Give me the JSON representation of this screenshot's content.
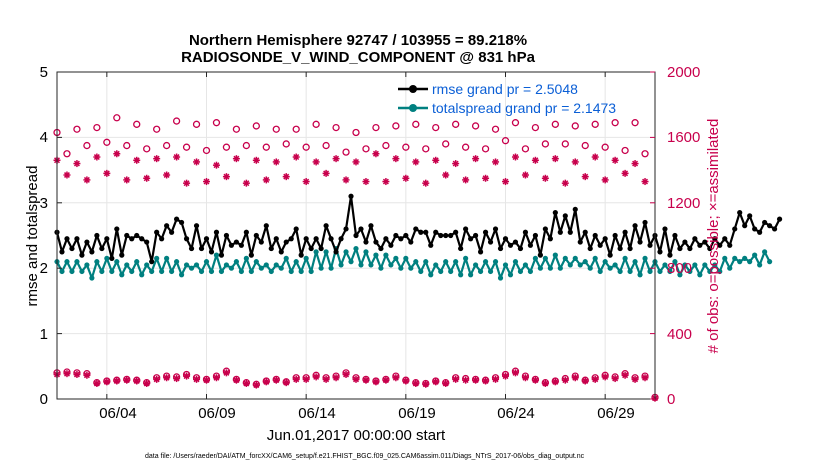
{
  "chart_data": {
    "type": "line",
    "title_line1": "Northern Hemisphere 92747 / 103955 = 89.218%",
    "title_line2": "RADIOSONDE_V_WIND_COMPONENT @ 831 hPa",
    "ylabel_left": "rmse and totalspread",
    "ylabel_right": "# of obs: o=possible; ×=assimilated",
    "xlabel": "Jun.01,2017 00:00:00 start",
    "footer": "data file: /Users/raeder/DAI/ATM_forcXX/CAM6_setup/f.e21.FHIST_BGC.f09_025.CAM6assim.011/Diags_NTrS_2017-06/obs_diag_output.nc",
    "ylim_left": [
      0,
      5
    ],
    "ylim_right": [
      0,
      2000
    ],
    "xlim": [
      1.5,
      31.5
    ],
    "yticks_left": [
      "0",
      "1",
      "2",
      "3",
      "4",
      "5"
    ],
    "yticks_right": [
      "0",
      "400",
      "800",
      "1200",
      "1600",
      "2000"
    ],
    "xticks": [
      {
        "day": 4,
        "label": "06/04"
      },
      {
        "day": 9,
        "label": "06/09"
      },
      {
        "day": 14,
        "label": "06/14"
      },
      {
        "day": 19,
        "label": "06/19"
      },
      {
        "day": 24,
        "label": "06/24"
      },
      {
        "day": 29,
        "label": "06/29"
      }
    ],
    "x_start": 1.5,
    "x_step": 0.25,
    "series": [
      {
        "name": "rmse",
        "legend": "rmse grand pr = 2.5048",
        "axis": "left",
        "color": "#000000",
        "marker": "dot",
        "values": [
          2.55,
          2.25,
          2.45,
          2.3,
          2.45,
          2.2,
          2.4,
          2.25,
          2.5,
          2.3,
          2.45,
          2.15,
          2.6,
          2.2,
          2.5,
          2.45,
          2.5,
          2.45,
          2.4,
          2.1,
          2.55,
          2.45,
          2.65,
          2.55,
          2.75,
          2.7,
          2.45,
          2.3,
          2.65,
          2.3,
          2.45,
          2.25,
          2.55,
          2.2,
          2.5,
          2.35,
          2.4,
          2.35,
          2.55,
          2.2,
          2.5,
          2.4,
          2.65,
          2.3,
          2.45,
          2.25,
          2.4,
          2.45,
          2.6,
          2.2,
          2.45,
          2.3,
          2.45,
          2.3,
          2.65,
          2.45,
          2.25,
          2.45,
          2.6,
          3.1,
          2.5,
          2.6,
          2.4,
          2.65,
          2.4,
          2.3,
          2.45,
          2.35,
          2.5,
          2.45,
          2.5,
          2.4,
          2.6,
          2.55,
          2.55,
          2.35,
          2.55,
          2.5,
          2.5,
          2.5,
          2.55,
          2.3,
          2.6,
          2.45,
          2.5,
          2.25,
          2.55,
          2.4,
          2.6,
          2.3,
          2.45,
          2.35,
          2.4,
          2.3,
          2.55,
          2.35,
          2.5,
          2.2,
          2.6,
          2.45,
          2.85,
          2.55,
          2.8,
          2.55,
          2.9,
          2.4,
          2.55,
          2.3,
          2.5,
          2.35,
          2.45,
          2.2,
          2.5,
          2.3,
          2.55,
          2.3,
          2.65,
          2.4,
          2.7,
          2.35,
          2.5,
          2.25,
          2.6,
          2.2,
          2.5,
          2.3,
          2.4,
          2.3,
          2.45,
          2.35,
          2.4,
          2.3,
          2.45,
          2.35,
          2.45,
          2.35,
          2.6,
          2.85,
          2.65,
          2.8,
          2.6,
          2.55,
          2.7,
          2.65,
          2.6,
          2.75
        ]
      },
      {
        "name": "totalspread",
        "legend": "totalspread grand pr = 2.1473",
        "axis": "left",
        "color": "#008080",
        "marker": "dot",
        "values": [
          2.1,
          1.95,
          2.1,
          1.95,
          2.1,
          1.95,
          2.05,
          1.85,
          2.1,
          1.95,
          2.15,
          1.95,
          2.1,
          1.9,
          2.05,
          1.95,
          2.1,
          1.9,
          2.05,
          1.95,
          2.15,
          1.95,
          2.15,
          1.95,
          2.1,
          1.9,
          2.05,
          2.0,
          2.05,
          1.95,
          2.1,
          1.95,
          2.2,
          1.95,
          2.05,
          2.0,
          2.1,
          1.95,
          2.15,
          1.95,
          2.1,
          2.0,
          2.05,
          1.95,
          2.05,
          2.0,
          2.15,
          1.95,
          2.1,
          1.95,
          2.15,
          1.95,
          2.25,
          2.0,
          2.25,
          2.0,
          2.3,
          2.05,
          2.25,
          2.1,
          2.3,
          2.05,
          2.25,
          2.05,
          2.2,
          2.0,
          2.2,
          2.05,
          2.15,
          2.0,
          2.15,
          2.0,
          2.1,
          1.95,
          2.1,
          1.9,
          2.05,
          1.95,
          2.1,
          1.95,
          2.1,
          1.9,
          2.15,
          1.9,
          2.05,
          1.95,
          2.1,
          1.95,
          2.1,
          1.85,
          2.05,
          1.9,
          2.1,
          1.95,
          2.05,
          1.95,
          2.15,
          2.0,
          2.15,
          2.0,
          2.2,
          2.0,
          2.15,
          2.05,
          2.15,
          2.05,
          2.1,
          2.0,
          2.15,
          1.95,
          2.1,
          2.0,
          2.05,
          1.95,
          2.15,
          1.95,
          2.1,
          1.9,
          2.15,
          1.95,
          2.1,
          1.95,
          2.05,
          1.95,
          2.1,
          1.9,
          2.05,
          1.95,
          2.05,
          1.9,
          2.05,
          1.95,
          2.05,
          1.95,
          2.15,
          2.0,
          2.15,
          2.1,
          2.15,
          2.1,
          2.2,
          2.05,
          2.25,
          2.1
        ]
      },
      {
        "name": "obs possible (upper)",
        "axis": "right",
        "color": "#c8004c",
        "marker": "circle",
        "x": [
          1.5,
          2.5,
          3.5,
          4.5,
          5.5,
          6.5,
          7.5,
          8.5,
          9.5,
          10.5,
          11.5,
          12.5,
          13.5,
          14.5,
          15.5,
          16.5,
          17.5,
          18.5,
          19.5,
          20.5,
          21.5,
          22.5,
          23.5,
          24.5,
          25.5,
          26.5,
          27.5,
          28.5,
          29.5,
          30.5
        ],
        "values": [
          1630,
          1650,
          1660,
          1720,
          1680,
          1650,
          1700,
          1680,
          1690,
          1650,
          1670,
          1650,
          1650,
          1680,
          1660,
          1630,
          1660,
          1670,
          1680,
          1660,
          1680,
          1670,
          1650,
          1690,
          1660,
          1680,
          1670,
          1680,
          1690,
          1690
        ]
      },
      {
        "name": "obs possible (lower)",
        "axis": "right",
        "color": "#c8004c",
        "marker": "circle",
        "x": [
          2.0,
          3.0,
          4.0,
          5.0,
          6.0,
          7.0,
          8.0,
          9.0,
          10.0,
          11.0,
          12.0,
          13.0,
          14.0,
          15.0,
          16.0,
          17.0,
          18.0,
          19.0,
          20.0,
          21.0,
          22.0,
          23.0,
          24.0,
          25.0,
          26.0,
          27.0,
          28.0,
          29.0,
          30.0,
          31.0
        ],
        "values": [
          1500,
          1550,
          1570,
          1550,
          1530,
          1550,
          1540,
          1520,
          1540,
          1550,
          1540,
          1560,
          1540,
          1550,
          1510,
          1530,
          1550,
          1540,
          1530,
          1560,
          1540,
          1530,
          1580,
          1530,
          1560,
          1560,
          1550,
          1540,
          1520,
          1500
        ]
      },
      {
        "name": "obs assimilated (upper)",
        "axis": "right",
        "color": "#c8004c",
        "marker": "star",
        "x": [
          1.5,
          2.5,
          3.5,
          4.5,
          5.5,
          6.5,
          7.5,
          8.5,
          9.5,
          10.5,
          11.5,
          12.5,
          13.5,
          14.5,
          15.5,
          16.5,
          17.5,
          18.5,
          19.5,
          20.5,
          21.5,
          22.5,
          23.5,
          24.5,
          25.5,
          26.5,
          27.5,
          28.5,
          29.5,
          30.5
        ],
        "values": [
          1460,
          1440,
          1480,
          1500,
          1460,
          1470,
          1480,
          1450,
          1430,
          1470,
          1460,
          1450,
          1480,
          1450,
          1470,
          1450,
          1500,
          1470,
          1450,
          1460,
          1440,
          1470,
          1450,
          1480,
          1460,
          1470,
          1450,
          1480,
          1460,
          1440
        ]
      },
      {
        "name": "obs assimilated (lower)",
        "axis": "right",
        "color": "#c8004c",
        "marker": "star",
        "x": [
          2.0,
          3.0,
          4.0,
          5.0,
          6.0,
          7.0,
          8.0,
          9.0,
          10.0,
          11.0,
          12.0,
          13.0,
          14.0,
          15.0,
          16.0,
          17.0,
          18.0,
          19.0,
          20.0,
          21.0,
          22.0,
          23.0,
          24.0,
          25.0,
          26.0,
          27.0,
          28.0,
          29.0,
          30.0,
          31.0
        ],
        "values": [
          1370,
          1340,
          1380,
          1340,
          1350,
          1370,
          1320,
          1330,
          1360,
          1320,
          1340,
          1360,
          1330,
          1380,
          1340,
          1330,
          1330,
          1350,
          1320,
          1370,
          1340,
          1350,
          1330,
          1370,
          1350,
          1320,
          1360,
          1340,
          1380,
          1330
        ]
      },
      {
        "name": "obs possible (bottom)",
        "axis": "right",
        "color": "#c8004c",
        "marker": "circle",
        "x": [
          1.5,
          2.0,
          2.5,
          3.0,
          3.5,
          4.0,
          4.5,
          5.0,
          5.5,
          6.0,
          6.5,
          7.0,
          7.5,
          8.0,
          8.5,
          9.0,
          9.5,
          10.0,
          10.5,
          11.0,
          11.5,
          12.0,
          12.5,
          13.0,
          13.5,
          14.0,
          14.5,
          15.0,
          15.5,
          16.0,
          16.5,
          17.0,
          17.5,
          18.0,
          18.5,
          19.0,
          19.5,
          20.0,
          20.5,
          21.0,
          21.5,
          22.0,
          22.5,
          23.0,
          23.5,
          24.0,
          24.5,
          25.0,
          25.5,
          26.0,
          26.5,
          27.0,
          27.5,
          28.0,
          28.5,
          29.0,
          29.5,
          30.0,
          30.5,
          31.0,
          31.5
        ],
        "values": [
          160,
          165,
          160,
          155,
          100,
          110,
          115,
          120,
          115,
          100,
          130,
          140,
          135,
          150,
          130,
          120,
          140,
          170,
          120,
          100,
          90,
          110,
          120,
          105,
          130,
          130,
          145,
          130,
          140,
          160,
          130,
          120,
          110,
          120,
          140,
          115,
          100,
          95,
          110,
          100,
          130,
          125,
          120,
          115,
          130,
          150,
          170,
          140,
          120,
          100,
          110,
          125,
          140,
          115,
          130,
          145,
          135,
          155,
          130,
          140,
          10
        ]
      },
      {
        "name": "obs assimilated (bottom)",
        "axis": "right",
        "color": "#c8004c",
        "marker": "star",
        "x": [
          1.5,
          2.0,
          2.5,
          3.0,
          3.5,
          4.0,
          4.5,
          5.0,
          5.5,
          6.0,
          6.5,
          7.0,
          7.5,
          8.0,
          8.5,
          9.0,
          9.5,
          10.0,
          10.5,
          11.0,
          11.5,
          12.0,
          12.5,
          13.0,
          13.5,
          14.0,
          14.5,
          15.0,
          15.5,
          16.0,
          16.5,
          17.0,
          17.5,
          18.0,
          18.5,
          19.0,
          19.5,
          20.0,
          20.5,
          21.0,
          21.5,
          22.0,
          22.5,
          23.0,
          23.5,
          24.0,
          24.5,
          25.0,
          25.5,
          26.0,
          26.5,
          27.0,
          27.5,
          28.0,
          28.5,
          29.0,
          29.5,
          30.0,
          30.5,
          31.0,
          31.5
        ],
        "values": [
          150,
          155,
          150,
          145,
          95,
          105,
          110,
          115,
          110,
          95,
          120,
          130,
          125,
          140,
          120,
          115,
          130,
          160,
          115,
          95,
          85,
          105,
          115,
          100,
          120,
          120,
          135,
          120,
          130,
          150,
          120,
          115,
          105,
          115,
          130,
          110,
          95,
          90,
          105,
          95,
          120,
          115,
          115,
          110,
          120,
          140,
          160,
          130,
          115,
          95,
          105,
          115,
          130,
          110,
          120,
          135,
          125,
          145,
          120,
          130,
          5
        ]
      }
    ]
  }
}
